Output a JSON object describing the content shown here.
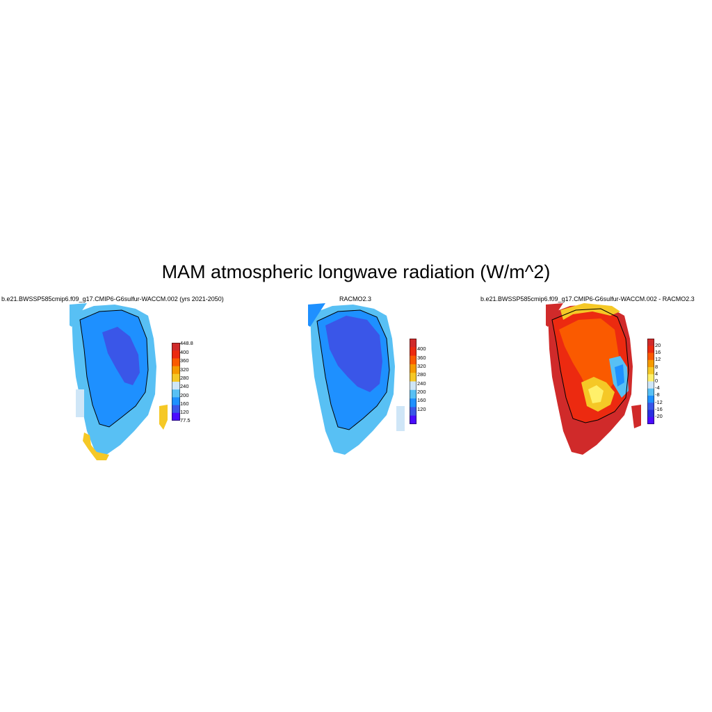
{
  "title": "MAM atmospheric longwave radiation (W/m^2)",
  "colors": {
    "model_interior": "#3a56e8",
    "model_main": "#1e90ff",
    "model_edge": "#58c0f4",
    "model_light": "#cfe6f7",
    "warm_yellow": "#f5c826",
    "diff_dark_red": "#d02a2a",
    "diff_red": "#ec2a10",
    "diff_orange": "#fa5a00",
    "coast_line": "#000000"
  },
  "panels": [
    {
      "title": "b.e21.BWSSP585cmip6.f09_g17.CMIP6-G6sulfur-WACCM.002 (yrs 2021-2050)",
      "colorbar": {
        "labels": [
          "448.8",
          "400",
          "360",
          "320",
          "280",
          "240",
          "200",
          "160",
          "120",
          "77.5"
        ],
        "colors": [
          "#d02a2a",
          "#ec2a10",
          "#fa5a00",
          "#f59a00",
          "#f5c826",
          "#cfe6f7",
          "#58c0f4",
          "#1e90ff",
          "#3a56e8",
          "#4a0cff"
        ]
      }
    },
    {
      "title": "RACMO2.3",
      "colorbar": {
        "labels": [
          "400",
          "360",
          "320",
          "280",
          "240",
          "200",
          "160",
          "120"
        ],
        "colors": [
          "#d02a2a",
          "#ec2a10",
          "#fa5a00",
          "#f59a00",
          "#f5c826",
          "#cfe6f7",
          "#58c0f4",
          "#1e90ff",
          "#3a56e8",
          "#4a0cff"
        ]
      }
    },
    {
      "title": "b.e21.BWSSP585cmip6.f09_g17.CMIP6-G6sulfur-WACCM.002 - RACMO2.3",
      "colorbar": {
        "labels": [
          "20",
          "16",
          "12",
          "8",
          "4",
          "0",
          "-4",
          "-8",
          "-12",
          "-16",
          "-20"
        ],
        "colors": [
          "#d02a2a",
          "#ec2a10",
          "#fa5a00",
          "#f59a00",
          "#f5c826",
          "#fff06a",
          "#cfe6f7",
          "#58c0f4",
          "#1e90ff",
          "#3a56e8",
          "#2a30e0",
          "#4a0cff"
        ]
      }
    }
  ]
}
